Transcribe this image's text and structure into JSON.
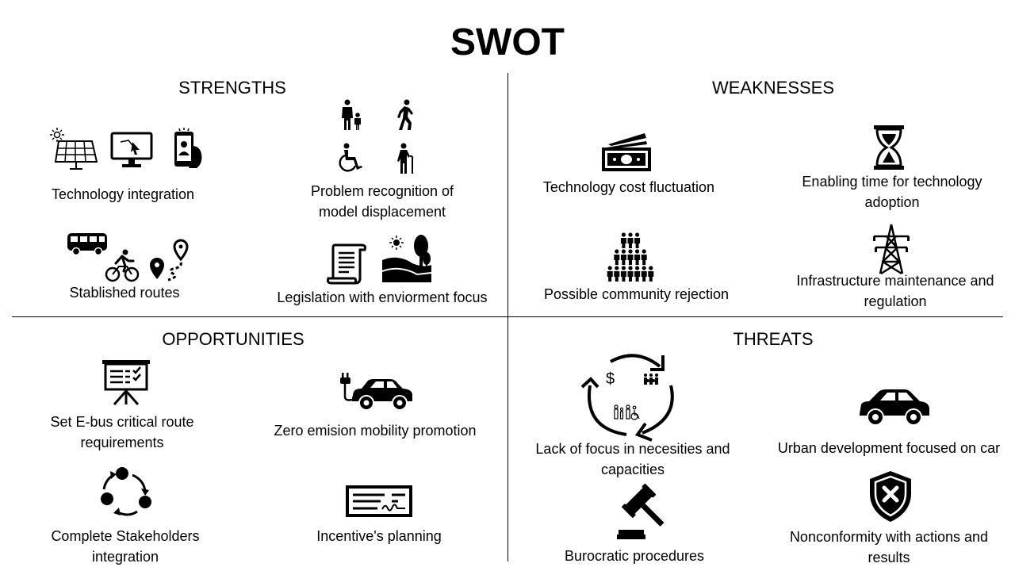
{
  "title": "SWOT",
  "quadrants": {
    "strengths": {
      "heading": "STRENGTHS",
      "items": [
        {
          "label": "Technology integration"
        },
        {
          "label": "Problem recognition of model displacement"
        },
        {
          "label": "Stablished routes"
        },
        {
          "label": "Legislation with enviorment focus"
        }
      ]
    },
    "weaknesses": {
      "heading": "WEAKNESSES",
      "items": [
        {
          "label": "Technology cost fluctuation"
        },
        {
          "label": "Enabling time for technology adoption"
        },
        {
          "label": "Possible community rejection"
        },
        {
          "label": "Infrastructure  maintenance and regulation"
        }
      ]
    },
    "opportunities": {
      "heading": "OPPORTUNITIES",
      "items": [
        {
          "label": "Set E-bus critical route requirements"
        },
        {
          "label": "Zero emision mobility promotion"
        },
        {
          "label": "Complete Stakeholders integration"
        },
        {
          "label": "Incentive's planning"
        }
      ]
    },
    "threats": {
      "heading": "THREATS",
      "items": [
        {
          "label": "Lack of focus in necesities and capacities"
        },
        {
          "label": "Urban development focused on car"
        },
        {
          "label": "Burocratic procedures"
        },
        {
          "label": "Nonconformity with actions and results"
        }
      ]
    }
  },
  "icons": {
    "technology": [
      "solar-panel-icon",
      "monitor-icon",
      "smartphone-icon"
    ],
    "people": [
      "parent-child-icon",
      "walking-person-icon",
      "wheelchair-icon",
      "elderly-person-icon"
    ],
    "routes": [
      "bus-icon",
      "bicycle-icon",
      "route-pin-icon"
    ],
    "legislation": [
      "scroll-icon",
      "landscape-icon"
    ],
    "cost": "banknote-icon",
    "time": "hourglass-icon",
    "community": "crowd-icon",
    "infrastructure": "power-tower-icon",
    "route_requirements": "presentation-board-icon",
    "zero_emission": "electric-car-icon",
    "stakeholders": "cycle-network-icon",
    "incentives": "check-document-icon",
    "needs_focus": "needs-cycle-icon",
    "urban_car": "car-icon",
    "procedures": "gavel-icon",
    "nonconformity": "shield-x-icon"
  }
}
